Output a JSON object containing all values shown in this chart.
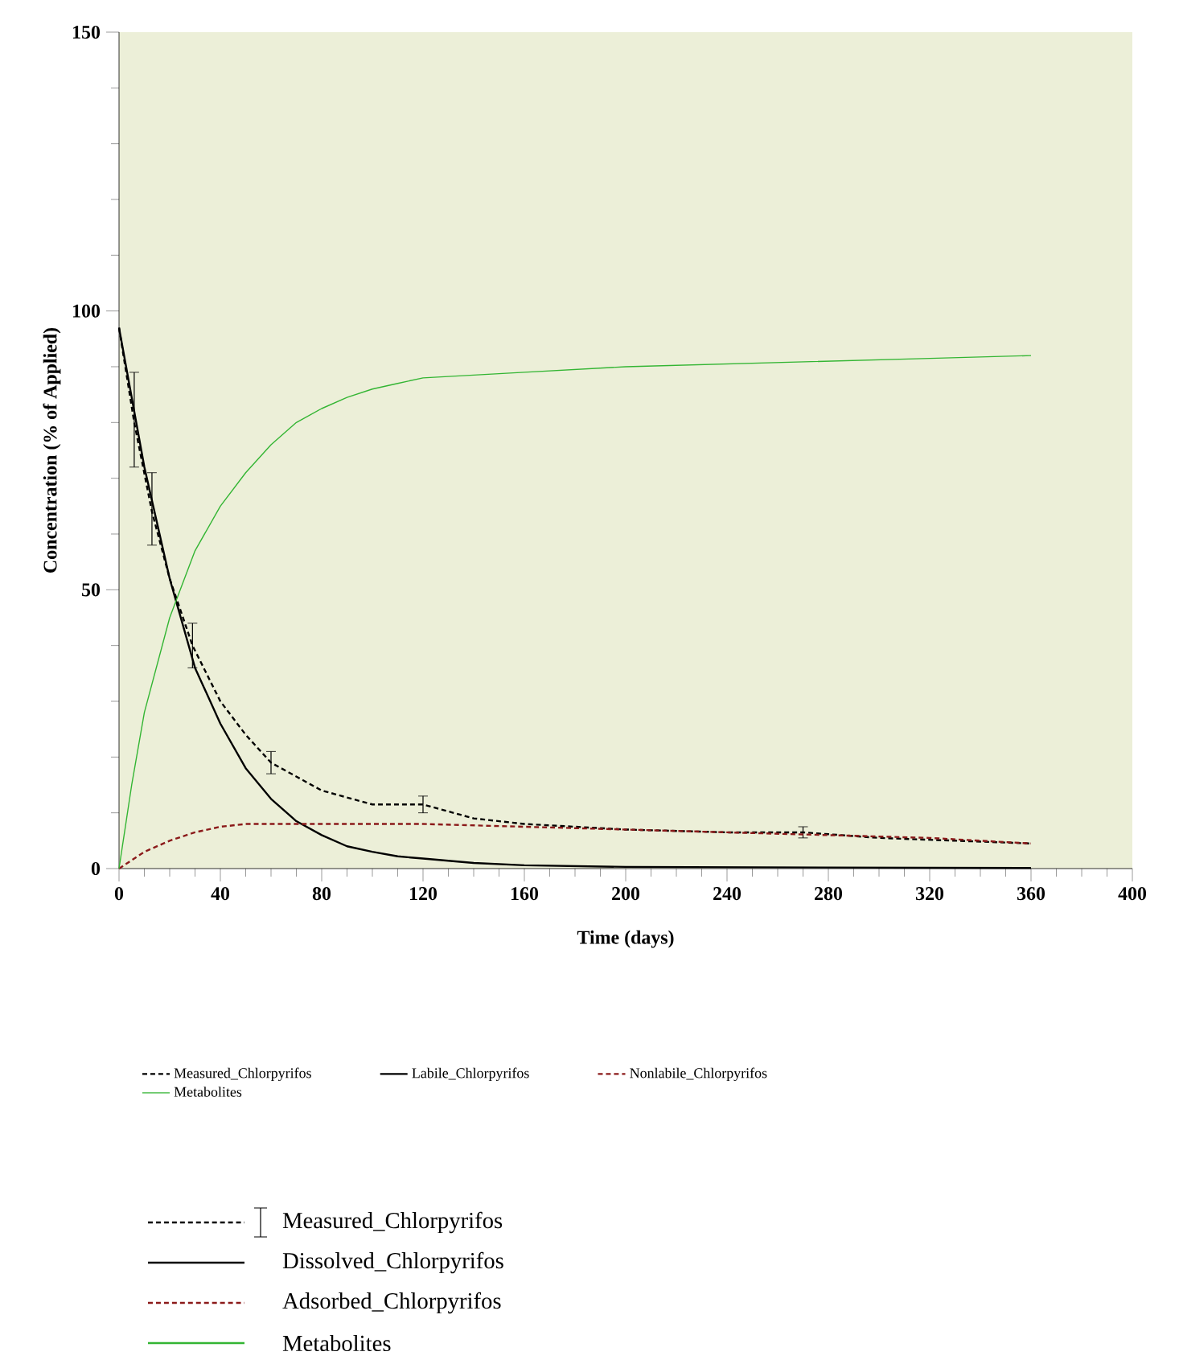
{
  "chart_data": {
    "type": "line",
    "xlabel": "Time (days)",
    "ylabel": "Concentration (% of Applied)",
    "xlim": [
      0,
      400
    ],
    "xticks": [
      0,
      40,
      80,
      120,
      160,
      200,
      240,
      280,
      320,
      360,
      400
    ],
    "ylim": [
      0,
      150
    ],
    "yticks": [
      0,
      50,
      100,
      150
    ],
    "legend": "bottom",
    "marker": "none",
    "grid": false,
    "series": [
      {
        "name": "Measured_Chlorpyrifos",
        "color": "#000000",
        "line_style": "dashed",
        "x": [
          0,
          6,
          13,
          20,
          29,
          40,
          50,
          60,
          80,
          100,
          120,
          140,
          160,
          200,
          240,
          270,
          300,
          330,
          360
        ],
        "values": [
          97,
          80,
          64,
          52,
          40,
          30,
          24,
          19,
          14,
          11.5,
          11.5,
          9,
          8,
          7,
          6.5,
          6.5,
          5.5,
          5,
          4.5
        ],
        "errors": [
          null,
          [
            72,
            89
          ],
          [
            58,
            71
          ],
          null,
          [
            36,
            44
          ],
          null,
          null,
          [
            17,
            21
          ],
          null,
          null,
          [
            10,
            13
          ],
          null,
          null,
          null,
          null,
          [
            5.5,
            7.5
          ],
          null,
          null,
          null
        ]
      },
      {
        "name": "Labile_Chlorpyrifos",
        "color": "#000000",
        "line_style": "solid",
        "x": [
          0,
          10,
          20,
          30,
          40,
          50,
          60,
          70,
          80,
          90,
          100,
          110,
          120,
          140,
          160,
          200,
          280,
          360
        ],
        "values": [
          97,
          72,
          52,
          36,
          26,
          18,
          12.5,
          8.5,
          6,
          4,
          3,
          2.2,
          1.8,
          1,
          0.6,
          0.3,
          0.2,
          0.1
        ]
      },
      {
        "name": "Nonlabile_Chlorpyrifos",
        "color": "#8b1a1a",
        "line_style": "dashed",
        "x": [
          0,
          10,
          20,
          30,
          40,
          50,
          60,
          80,
          120,
          160,
          200,
          240,
          280,
          320,
          360
        ],
        "values": [
          0,
          3,
          5,
          6.5,
          7.5,
          8,
          8,
          8,
          8,
          7.5,
          7,
          6.5,
          6,
          5.5,
          4.5
        ]
      },
      {
        "name": "Metabolites",
        "color": "#33b533",
        "line_style": "solid",
        "x": [
          0,
          5,
          10,
          20,
          30,
          40,
          50,
          60,
          70,
          80,
          90,
          100,
          110,
          120,
          140,
          160,
          200,
          240,
          280,
          320,
          360
        ],
        "values": [
          0,
          15,
          28,
          45,
          57,
          65,
          71,
          76,
          80,
          82.5,
          84.5,
          86,
          87,
          88,
          88.5,
          89,
          90,
          90.5,
          91,
          91.5,
          92
        ]
      }
    ],
    "annotations": [
      "Measured_Chlorpyrifos",
      "Dissolved_Chlorpyrifos",
      "Adsorbed_Chlorpyrifos",
      "Metabolites"
    ]
  }
}
